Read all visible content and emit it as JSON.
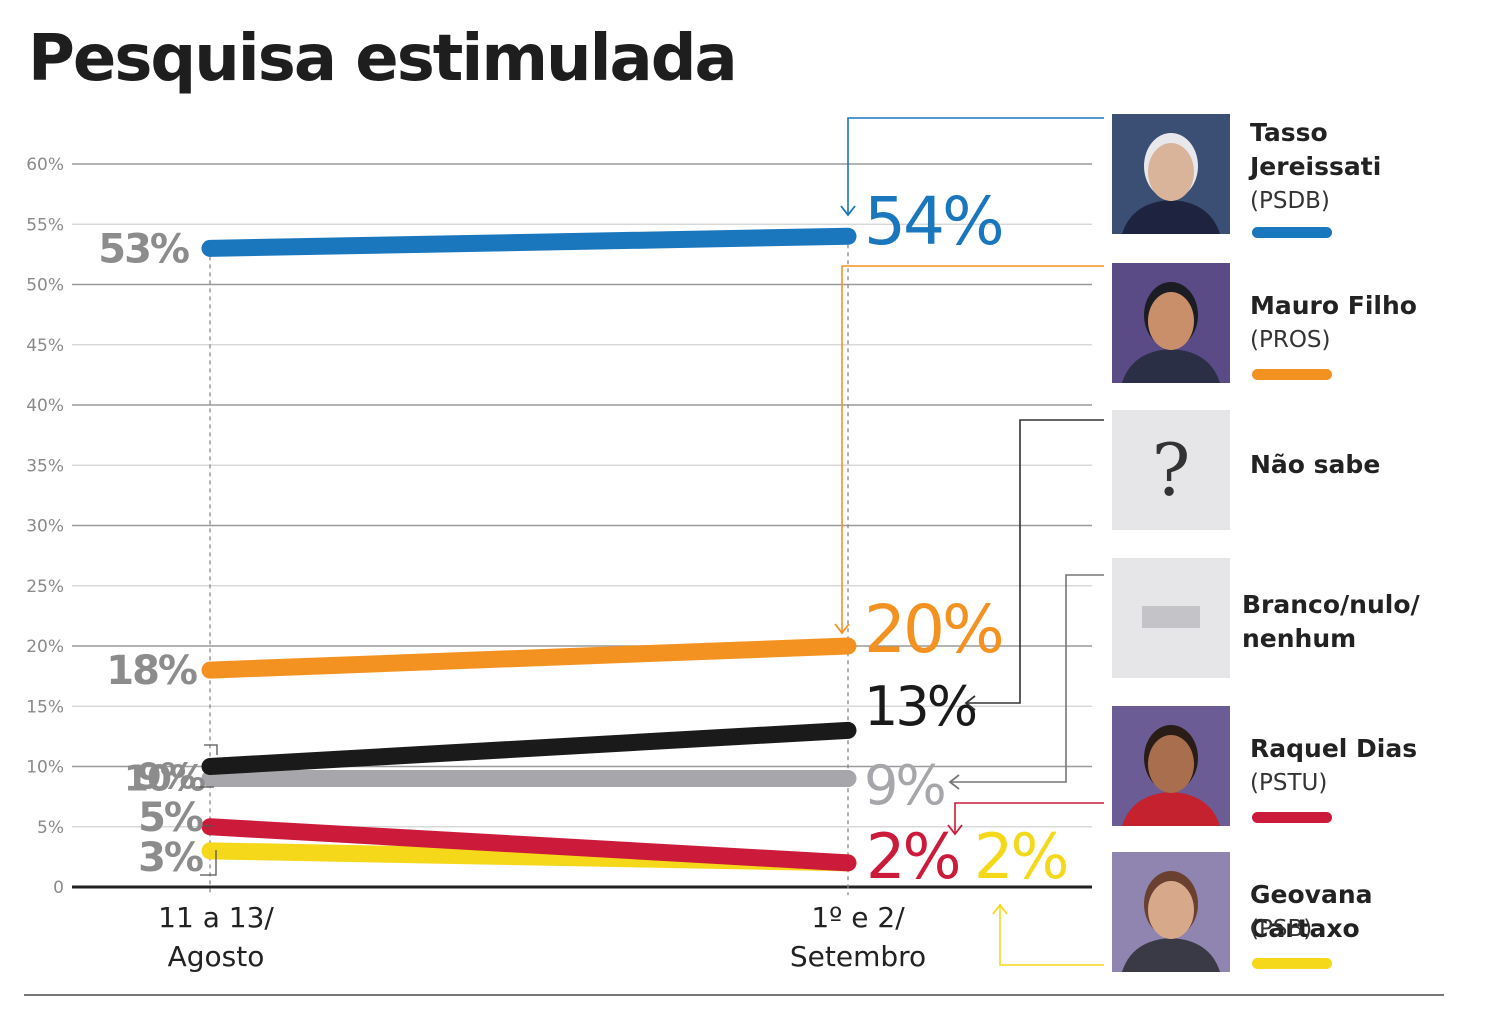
{
  "title": "Pesquisa estimulada",
  "chart_data": {
    "type": "line",
    "title": "Pesquisa estimulada",
    "categories": [
      "11 a 13/ Agosto",
      "1º e 2/ Setembro"
    ],
    "category_lines": [
      [
        "11 a 13/",
        "Agosto"
      ],
      [
        "1º e 2/",
        "Setembro"
      ]
    ],
    "y_ticks": [
      "0",
      "5%",
      "10%",
      "15%",
      "20%",
      "25%",
      "30%",
      "35%",
      "40%",
      "45%",
      "50%",
      "55%",
      "60%"
    ],
    "ylim": [
      0,
      60
    ],
    "grid": true,
    "legend_position": "right",
    "series": [
      {
        "name": "Tasso Jereissati",
        "party": "(PSDB)",
        "values": [
          53,
          54
        ],
        "labels": [
          "53%",
          "54%"
        ],
        "color": "#1a76bd"
      },
      {
        "name": "Mauro Filho",
        "party": "(PROS)",
        "values": [
          18,
          20
        ],
        "labels": [
          "18%",
          "20%"
        ],
        "color": "#f39221"
      },
      {
        "name": "Não sabe",
        "party": "",
        "values": [
          10,
          13
        ],
        "labels": [
          "10%",
          "13%"
        ],
        "color": "#1a1a1a"
      },
      {
        "name": "Branco/nulo/ nenhum",
        "party": "",
        "values": [
          9,
          9
        ],
        "labels": [
          "9%",
          "9%"
        ],
        "color": "#a7a7ab"
      },
      {
        "name": "Raquel Dias",
        "party": "(PSTU)",
        "values": [
          5,
          2
        ],
        "labels": [
          "5%",
          "2%"
        ],
        "color": "#cc1a3a"
      },
      {
        "name": "Geovana Cartaxo",
        "party": "(PSB)",
        "values": [
          3,
          2
        ],
        "labels": [
          "3%",
          "2%"
        ],
        "color": "#f6d81a"
      }
    ]
  },
  "legend": [
    {
      "name": "Tasso Jereissati",
      "party": "(PSDB)",
      "color": "#1a76bd",
      "icon": "tasso-photo"
    },
    {
      "name": "Mauro Filho",
      "party": "(PROS)",
      "color": "#f39221",
      "icon": "mauro-photo"
    },
    {
      "name": "Não sabe",
      "party": "",
      "color": "",
      "icon": "question-mark-icon",
      "icon_text": "?"
    },
    {
      "name": "Branco/nulo/ nenhum",
      "party": "",
      "color": "",
      "icon": "blank-vote-icon"
    },
    {
      "name": "Raquel Dias",
      "party": "(PSTU)",
      "color": "#cc1a3a",
      "icon": "raquel-photo"
    },
    {
      "name": "Geovana Cartaxo",
      "party": "(PSB)",
      "color": "#f6d81a",
      "icon": "geovana-photo"
    }
  ]
}
